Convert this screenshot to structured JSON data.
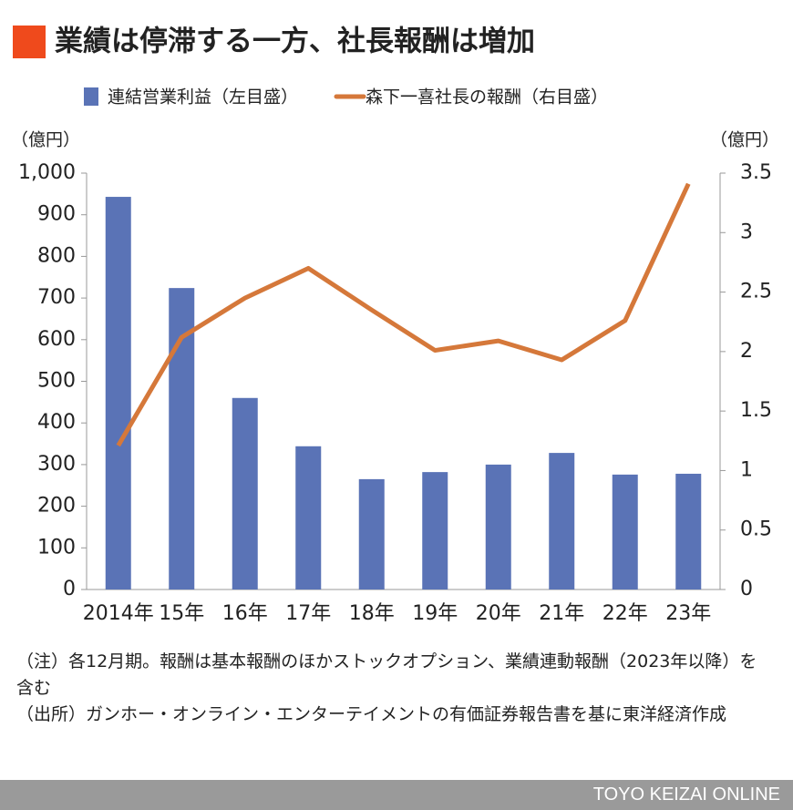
{
  "chart_data": {
    "type": "bar-line",
    "title": "業績は停滞する一方、社長報酬は増加",
    "ylabel": "（億円）",
    "y2label": "（億円）",
    "categories": [
      "2014年",
      "15年",
      "16年",
      "17年",
      "18年",
      "19年",
      "20年",
      "21年",
      "22年",
      "23年"
    ],
    "series": [
      {
        "name": "連結営業利益（左目盛）",
        "color": "#5a73b6",
        "type": "bar",
        "axis": "y",
        "values": [
          943,
          724,
          460,
          344,
          265,
          282,
          300,
          328,
          276,
          278
        ]
      },
      {
        "name": "森下一喜社長の報酬（右目盛）",
        "color": "#d5783a",
        "type": "line",
        "axis": "y2",
        "values": [
          1.21,
          2.12,
          2.45,
          2.7,
          2.35,
          2.01,
          2.09,
          1.93,
          2.26,
          3.41
        ]
      }
    ],
    "ylim": [
      0,
      1000
    ],
    "yticks": [
      0,
      100,
      200,
      300,
      400,
      500,
      600,
      700,
      800,
      900,
      {
        "value": 1000,
        "label": "1,000"
      }
    ],
    "y2lim": [
      0,
      3.5
    ],
    "y2ticks": [
      0,
      0.5,
      1,
      1.5,
      2,
      2.5,
      3,
      3.5
    ]
  },
  "notes": [
    "（注）各12月期。報酬は基本報酬のほかストックオプション、業績連動報酬（2023年以降）を含む",
    "（出所）ガンホー・オンライン・エンターテイメントの有価証券報告書を基に東洋経済作成"
  ],
  "footer": "TOYO KEIZAI ONLINE"
}
